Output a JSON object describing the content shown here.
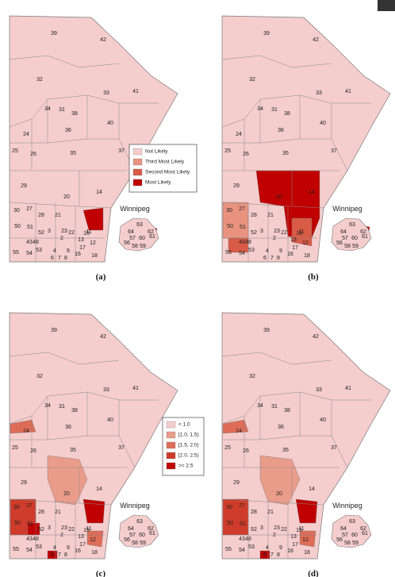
{
  "region_labels": [
    "39",
    "42",
    "32",
    "33",
    "41",
    "34",
    "31",
    "38",
    "36",
    "40",
    "24",
    "25",
    "26",
    "35",
    "37",
    "29",
    "20",
    "14",
    "30",
    "27",
    "28",
    "21",
    "50",
    "51",
    "52",
    "3",
    "23",
    "22",
    "15",
    "12",
    "55",
    "54",
    "53",
    "4",
    "9",
    "18",
    "6",
    "7",
    "8",
    "2",
    "13",
    "43",
    "48",
    "17",
    "16",
    "11"
  ],
  "inset_title": "Winnipeg",
  "inset_labels": [
    "63",
    "62",
    "61",
    "60",
    "57",
    "56",
    "58",
    "59",
    "64"
  ],
  "legend_likelihood": {
    "items": [
      {
        "label": "Not Likely",
        "color": "#f5cdcd"
      },
      {
        "label": "Third Most Likely",
        "color": "#e9937f"
      },
      {
        "label": "Second Most Likely",
        "color": "#d95a45"
      },
      {
        "label": "Most Likely",
        "color": "#c00000"
      }
    ]
  },
  "legend_ratio": {
    "items": [
      {
        "label": "< 1.0",
        "color": "#f5cdcd"
      },
      {
        "label": "[1.0, 1.5)",
        "color": "#ea9c8a"
      },
      {
        "label": "[1.5, 2.0)",
        "color": "#de6c57"
      },
      {
        "label": "[2.0, 2.5)",
        "color": "#cf3c2b"
      },
      {
        "label": ">= 2.5",
        "color": "#c00000"
      }
    ]
  },
  "panel_labels": [
    "(a)",
    "(b)",
    "(c)",
    "(d)"
  ]
}
